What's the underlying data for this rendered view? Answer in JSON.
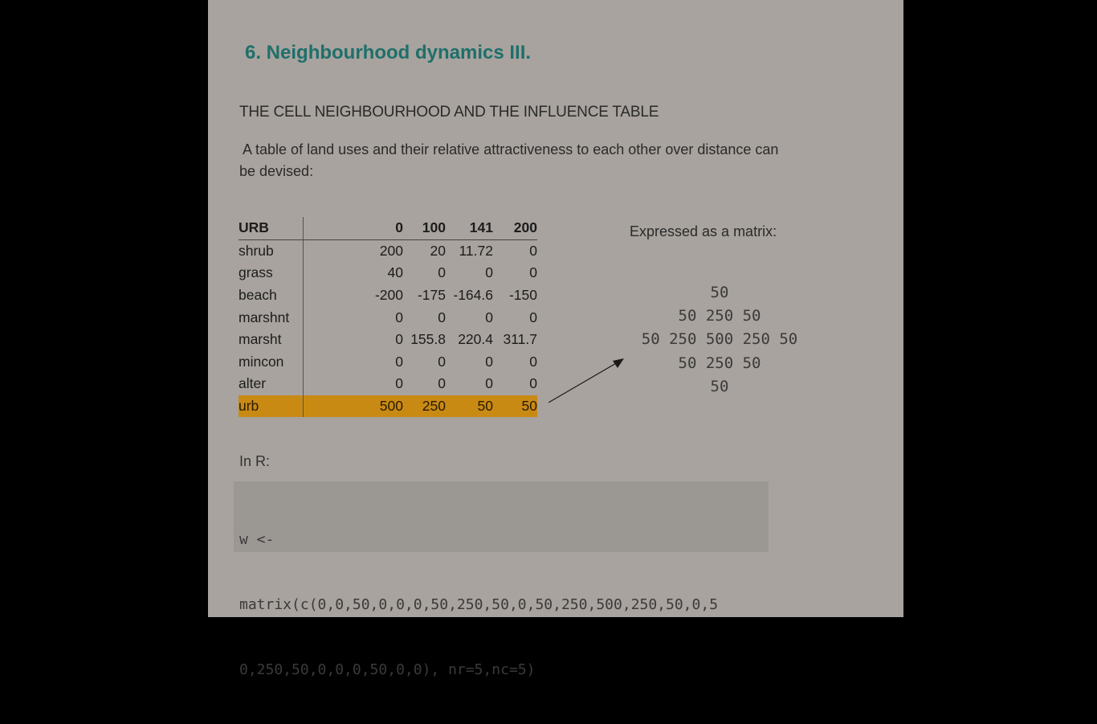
{
  "slide": {
    "title": "6. Neighbourhood dynamics III.",
    "subtitle": "THE CELL NEIGHBOURHOOD AND THE INFLUENCE TABLE",
    "intro_line1": " A table of land uses and their relative attractiveness to each other over distance can",
    "intro_line2": "be devised:"
  },
  "influence_table": {
    "headers": [
      "URB",
      "0",
      "100",
      "141",
      "200"
    ],
    "rows": [
      {
        "label": "shrub",
        "values": [
          "200",
          "20",
          "11.72",
          "0"
        ]
      },
      {
        "label": "grass",
        "values": [
          "40",
          "0",
          "0",
          "0"
        ]
      },
      {
        "label": "beach",
        "values": [
          "-200",
          "-175",
          "-164.6",
          "-150"
        ]
      },
      {
        "label": "marshnt",
        "values": [
          "0",
          "0",
          "0",
          "0"
        ]
      },
      {
        "label": "marsht",
        "values": [
          "0",
          "155.8",
          "220.4",
          "311.7"
        ]
      },
      {
        "label": "mincon",
        "values": [
          "0",
          "0",
          "0",
          "0"
        ]
      },
      {
        "label": "alter",
        "values": [
          "0",
          "0",
          "0",
          "0"
        ]
      },
      {
        "label": "urb",
        "values": [
          "500",
          "250",
          "50",
          "50"
        ],
        "highlight": true
      }
    ],
    "highlight_color": "#c98a14"
  },
  "matrix": {
    "label": "Expressed as a matrix:",
    "rows": [
      "50",
      "50 250 50",
      "50 250 500 250 50",
      "50 250 50",
      "50"
    ]
  },
  "r_section": {
    "label": "In R:",
    "code_lines": [
      "w <-",
      "matrix(c(0,0,50,0,0,0,50,250,50,0,50,250,500,250,50,0,5",
      "0,250,50,0,0,0,50,0,0), nr=5,nc=5)"
    ]
  },
  "colors": {
    "background": "#000000",
    "slide": "#a8a39e",
    "title": "#1f6f6b",
    "code_box": "#9b9894"
  }
}
